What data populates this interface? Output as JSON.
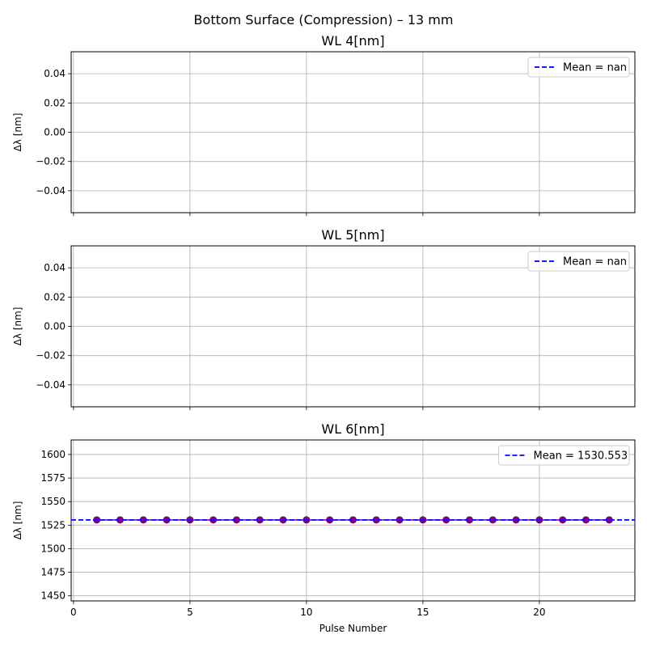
{
  "figure": {
    "suptitle": "Bottom Surface (Compression) – 13 mm"
  },
  "chart_data": [
    {
      "type": "line",
      "title": "WL 4[nm]",
      "xlabel": "",
      "ylabel": "Δλ [nm]",
      "xlim": [
        -0.1,
        24.1
      ],
      "ylim": [
        -0.055,
        0.055
      ],
      "xticks": [
        0,
        5,
        10,
        15,
        20
      ],
      "xtick_labels_visible": false,
      "yticks": [
        0.04,
        0.02,
        0.0,
        -0.02,
        -0.04
      ],
      "ytick_labels": [
        "0.04",
        "0.02",
        "0.00",
        "−0.02",
        "−0.04"
      ],
      "grid": true,
      "legend": {
        "position": "upper right",
        "entries": [
          "Mean = nan"
        ]
      },
      "series": [],
      "mean_line": {
        "label": "Mean = nan",
        "value": null,
        "color": "#0000ff",
        "style": "dashed"
      }
    },
    {
      "type": "line",
      "title": "WL 5[nm]",
      "xlabel": "",
      "ylabel": "Δλ [nm]",
      "xlim": [
        -0.1,
        24.1
      ],
      "ylim": [
        -0.055,
        0.055
      ],
      "xticks": [
        0,
        5,
        10,
        15,
        20
      ],
      "xtick_labels_visible": false,
      "yticks": [
        0.04,
        0.02,
        0.0,
        -0.02,
        -0.04
      ],
      "ytick_labels": [
        "0.04",
        "0.02",
        "0.00",
        "−0.02",
        "−0.04"
      ],
      "grid": true,
      "legend": {
        "position": "upper right",
        "entries": [
          "Mean = nan"
        ]
      },
      "series": [],
      "mean_line": {
        "label": "Mean = nan",
        "value": null,
        "color": "#0000ff",
        "style": "dashed"
      }
    },
    {
      "type": "line",
      "title": "WL 6[nm]",
      "xlabel": "Pulse Number",
      "ylabel": "Δλ [nm]",
      "xlim": [
        -0.1,
        24.1
      ],
      "ylim": [
        1444.6,
        1615.4
      ],
      "xticks": [
        0,
        5,
        10,
        15,
        20
      ],
      "xtick_labels": [
        "0",
        "5",
        "10",
        "15",
        "20"
      ],
      "xtick_labels_visible": true,
      "yticks": [
        1600,
        1575,
        1550,
        1525,
        1500,
        1475,
        1450
      ],
      "ytick_labels": [
        "1600",
        "1575",
        "1550",
        "1525",
        "1500",
        "1475",
        "1450"
      ],
      "grid": true,
      "legend": {
        "position": "upper right",
        "entries": [
          "Mean = 1530.553"
        ]
      },
      "series": [
        {
          "x": [
            1,
            2,
            3,
            4,
            5,
            6,
            7,
            8,
            9,
            10,
            11,
            12,
            13,
            14,
            15,
            16,
            17,
            18,
            19,
            20,
            21,
            22,
            23
          ],
          "values": [
            1530.553,
            1530.553,
            1530.553,
            1530.553,
            1530.553,
            1530.553,
            1530.553,
            1530.553,
            1530.553,
            1530.553,
            1530.553,
            1530.553,
            1530.553,
            1530.553,
            1530.553,
            1530.553,
            1530.553,
            1530.553,
            1530.553,
            1530.553,
            1530.553,
            1530.553,
            1530.553
          ],
          "color": "#800080",
          "marker": "circle"
        }
      ],
      "mean_line": {
        "label": "Mean = 1530.553",
        "value": 1530.553,
        "color": "#0000ff",
        "style": "dashed"
      }
    }
  ]
}
